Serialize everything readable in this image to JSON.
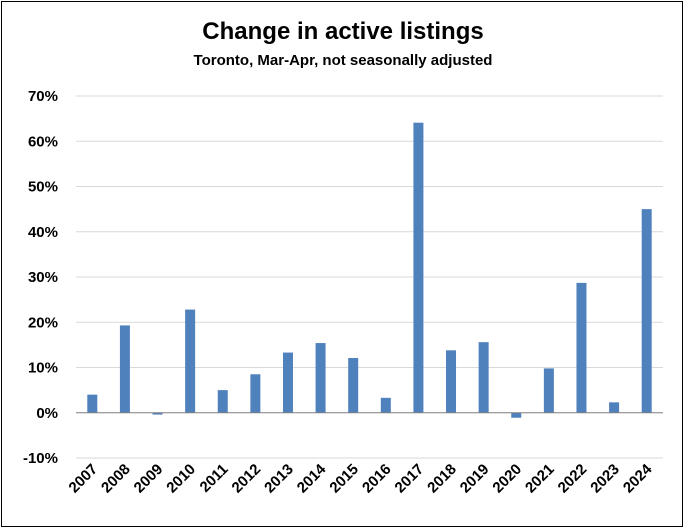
{
  "chart_data": {
    "type": "bar",
    "title": "Change in active listings",
    "subtitle": "Toronto, Mar-Apr, not seasonally adjusted",
    "xlabel": "",
    "ylabel": "",
    "categories": [
      "2007",
      "2008",
      "2009",
      "2010",
      "2011",
      "2012",
      "2013",
      "2014",
      "2015",
      "2016",
      "2017",
      "2018",
      "2019",
      "2020",
      "2021",
      "2022",
      "2023",
      "2024"
    ],
    "values": [
      4.0,
      19.3,
      -0.4,
      22.8,
      5.0,
      8.5,
      13.3,
      15.4,
      12.1,
      3.3,
      64.1,
      13.8,
      15.6,
      -1.1,
      9.8,
      28.7,
      2.3,
      45.0
    ],
    "ylim": [
      -10,
      70
    ],
    "yticks": [
      -10,
      0,
      10,
      20,
      30,
      40,
      50,
      60,
      70
    ],
    "ytick_labels": [
      "-10%",
      "0%",
      "10%",
      "20%",
      "30%",
      "40%",
      "50%",
      "60%",
      "70%"
    ],
    "grid": true,
    "legend": "none",
    "bar_color": "#4F81BD",
    "grid_color": "#D9D9D9",
    "axis_color": "#7F7F7F"
  }
}
